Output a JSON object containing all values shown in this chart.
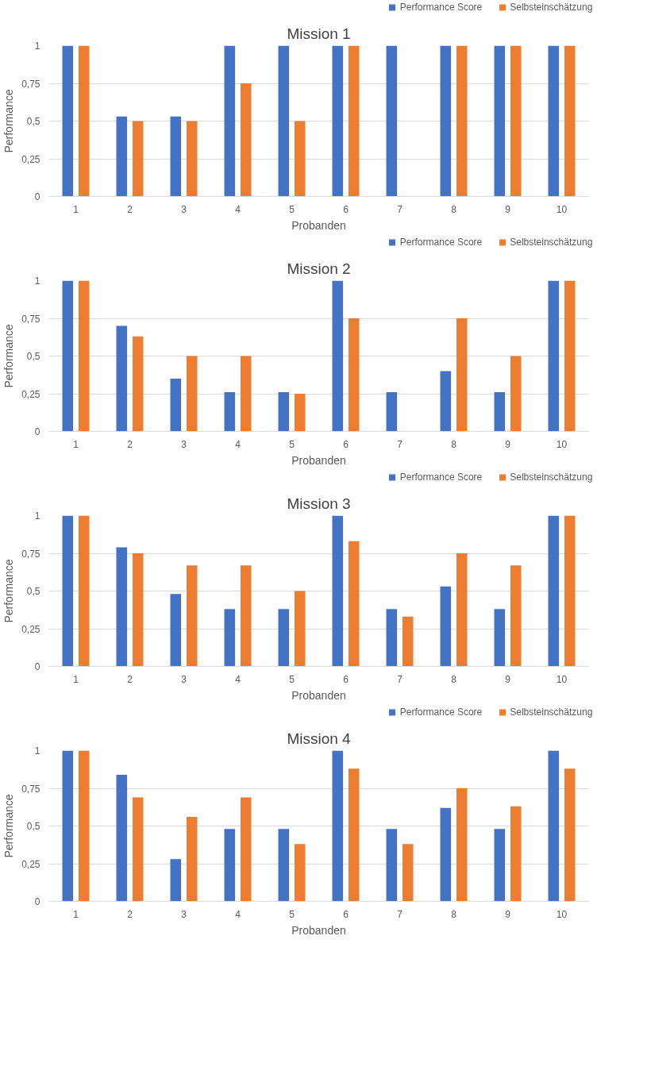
{
  "chart_data": [
    {
      "type": "bar",
      "title": "Mission 1",
      "xlabel": "Probanden",
      "ylabel": "Performance",
      "categories": [
        "1",
        "2",
        "3",
        "4",
        "5",
        "6",
        "7",
        "8",
        "9",
        "10"
      ],
      "series": [
        {
          "name": "Performance Score",
          "color": "#4472c4",
          "values": [
            1,
            0.53,
            0.53,
            1,
            1,
            1,
            1,
            1,
            1,
            1
          ]
        },
        {
          "name": "Selbsteinschätzung",
          "color": "#ed7d31",
          "values": [
            1,
            0.5,
            0.5,
            0.75,
            0.5,
            1,
            0,
            1,
            1,
            1
          ]
        }
      ],
      "ylim": [
        0,
        1
      ],
      "yticks": [
        0,
        {
          "value": 0.25,
          "label": "0,25"
        },
        {
          "value": 0.5,
          "label": "0,5"
        },
        {
          "value": 0.75,
          "label": "0,75"
        },
        1
      ],
      "grid": "y",
      "legend": "top right"
    },
    {
      "type": "bar",
      "title": "Mission 2",
      "xlabel": "Probanden",
      "ylabel": "Performance",
      "categories": [
        "1",
        "2",
        "3",
        "4",
        "5",
        "6",
        "7",
        "8",
        "9",
        "10"
      ],
      "series": [
        {
          "name": "Performance Score",
          "color": "#4472c4",
          "values": [
            1,
            0.7,
            0.35,
            0.26,
            0.26,
            1,
            0.26,
            0.4,
            0.26,
            1
          ]
        },
        {
          "name": "Selbsteinschätzung",
          "color": "#ed7d31",
          "values": [
            1,
            0.63,
            0.5,
            0.5,
            0.25,
            0.75,
            0,
            0.75,
            0.5,
            1
          ]
        }
      ],
      "ylim": [
        0,
        1
      ],
      "yticks": [
        0,
        {
          "value": 0.25,
          "label": "0,25"
        },
        {
          "value": 0.5,
          "label": "0,5"
        },
        {
          "value": 0.75,
          "label": "0,75"
        },
        1
      ],
      "grid": "y",
      "legend": "top right"
    },
    {
      "type": "bar",
      "title": "Mission 3",
      "xlabel": "Probanden",
      "ylabel": "Performance",
      "categories": [
        "1",
        "2",
        "3",
        "4",
        "5",
        "6",
        "7",
        "8",
        "9",
        "10"
      ],
      "series": [
        {
          "name": "Performance Score",
          "color": "#4472c4",
          "values": [
            1,
            0.79,
            0.48,
            0.38,
            0.38,
            1,
            0.38,
            0.53,
            0.38,
            1
          ]
        },
        {
          "name": "Selbsteinschätzung",
          "color": "#ed7d31",
          "values": [
            1,
            0.75,
            0.67,
            0.67,
            0.5,
            0.83,
            0.33,
            0.75,
            0.67,
            1
          ]
        }
      ],
      "ylim": [
        0,
        1
      ],
      "yticks": [
        0,
        {
          "value": 0.25,
          "label": "0,25"
        },
        {
          "value": 0.5,
          "label": "0,5"
        },
        {
          "value": 0.75,
          "label": "0,75"
        },
        1
      ],
      "grid": "y",
      "legend": "top right"
    },
    {
      "type": "bar",
      "title": "Mission 4",
      "xlabel": "Probanden",
      "ylabel": "Performance",
      "categories": [
        "1",
        "2",
        "3",
        "4",
        "5",
        "6",
        "7",
        "8",
        "9",
        "10"
      ],
      "series": [
        {
          "name": "Performance Score",
          "color": "#4472c4",
          "values": [
            1,
            0.84,
            0.28,
            0.48,
            0.48,
            1,
            0.48,
            0.62,
            0.48,
            1
          ]
        },
        {
          "name": "Selbsteinschätzung",
          "color": "#ed7d31",
          "values": [
            1,
            0.69,
            0.56,
            0.69,
            0.38,
            0.88,
            0.38,
            0.75,
            0.63,
            0.88
          ]
        }
      ],
      "ylim": [
        0,
        1
      ],
      "yticks": [
        0,
        {
          "value": 0.25,
          "label": "0,25"
        },
        {
          "value": 0.5,
          "label": "0,5"
        },
        {
          "value": 0.75,
          "label": "0,75"
        },
        1
      ],
      "grid": "y",
      "legend": "top right"
    }
  ]
}
